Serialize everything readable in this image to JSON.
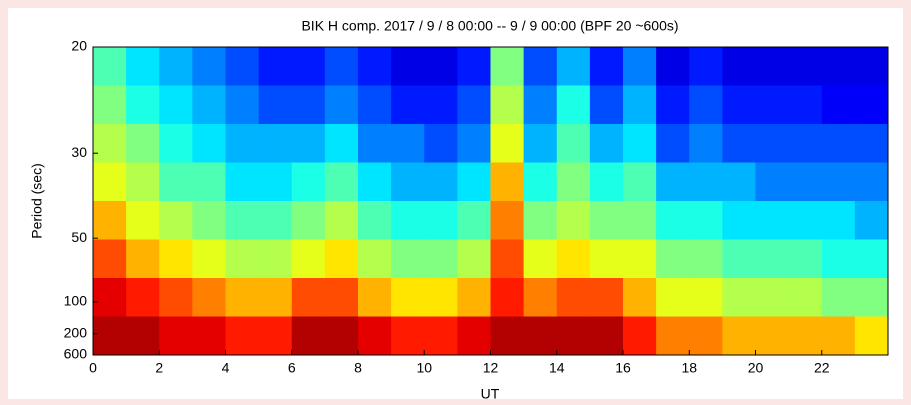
{
  "chart_data": {
    "type": "heatmap",
    "title": "BIK   H comp.     2017 /  9 /  8   00:00 --  9 /  9   00:00 (BPF  20  ~600s)",
    "xlabel": "UT",
    "ylabel": "Period (sec)",
    "xlim": [
      0,
      24
    ],
    "xticks": [
      0,
      2,
      4,
      6,
      8,
      10,
      12,
      14,
      16,
      18,
      20,
      22
    ],
    "ylim": [
      20,
      600
    ],
    "yticks": [
      20,
      30,
      50,
      100,
      200,
      600
    ],
    "yscale": "inverse",
    "colormap": "jet",
    "zlim": [
      0,
      1
    ],
    "z": [
      [
        0.45,
        0.5,
        0.55,
        0.6,
        0.7,
        0.8,
        0.9,
        0.95
      ],
      [
        0.35,
        0.4,
        0.5,
        0.55,
        0.6,
        0.7,
        0.85,
        0.95
      ],
      [
        0.3,
        0.35,
        0.4,
        0.45,
        0.55,
        0.65,
        0.8,
        0.9
      ],
      [
        0.25,
        0.3,
        0.35,
        0.45,
        0.5,
        0.6,
        0.75,
        0.9
      ],
      [
        0.2,
        0.25,
        0.3,
        0.35,
        0.45,
        0.55,
        0.7,
        0.85
      ],
      [
        0.15,
        0.2,
        0.3,
        0.35,
        0.45,
        0.55,
        0.7,
        0.85
      ],
      [
        0.15,
        0.2,
        0.3,
        0.4,
        0.5,
        0.6,
        0.8,
        0.95
      ],
      [
        0.2,
        0.25,
        0.35,
        0.45,
        0.55,
        0.65,
        0.8,
        0.95
      ],
      [
        0.15,
        0.2,
        0.25,
        0.35,
        0.45,
        0.55,
        0.7,
        0.9
      ],
      [
        0.1,
        0.15,
        0.25,
        0.3,
        0.4,
        0.5,
        0.65,
        0.85
      ],
      [
        0.1,
        0.15,
        0.2,
        0.3,
        0.4,
        0.5,
        0.65,
        0.85
      ],
      [
        0.15,
        0.2,
        0.25,
        0.35,
        0.45,
        0.55,
        0.7,
        0.9
      ],
      [
        0.5,
        0.55,
        0.6,
        0.7,
        0.75,
        0.8,
        0.85,
        0.95
      ],
      [
        0.2,
        0.25,
        0.3,
        0.4,
        0.5,
        0.6,
        0.75,
        0.95
      ],
      [
        0.3,
        0.4,
        0.45,
        0.5,
        0.55,
        0.65,
        0.8,
        0.95
      ],
      [
        0.15,
        0.2,
        0.3,
        0.4,
        0.5,
        0.6,
        0.8,
        0.95
      ],
      [
        0.25,
        0.3,
        0.35,
        0.45,
        0.5,
        0.6,
        0.7,
        0.85
      ],
      [
        0.1,
        0.15,
        0.2,
        0.3,
        0.4,
        0.5,
        0.6,
        0.75
      ],
      [
        0.15,
        0.2,
        0.25,
        0.3,
        0.4,
        0.5,
        0.6,
        0.75
      ],
      [
        0.1,
        0.15,
        0.2,
        0.3,
        0.35,
        0.45,
        0.55,
        0.7
      ],
      [
        0.1,
        0.15,
        0.2,
        0.25,
        0.35,
        0.45,
        0.55,
        0.7
      ],
      [
        0.1,
        0.15,
        0.2,
        0.25,
        0.35,
        0.45,
        0.55,
        0.7
      ],
      [
        0.1,
        0.12,
        0.2,
        0.25,
        0.35,
        0.4,
        0.5,
        0.7
      ],
      [
        0.1,
        0.12,
        0.2,
        0.25,
        0.3,
        0.4,
        0.5,
        0.65
      ]
    ]
  }
}
